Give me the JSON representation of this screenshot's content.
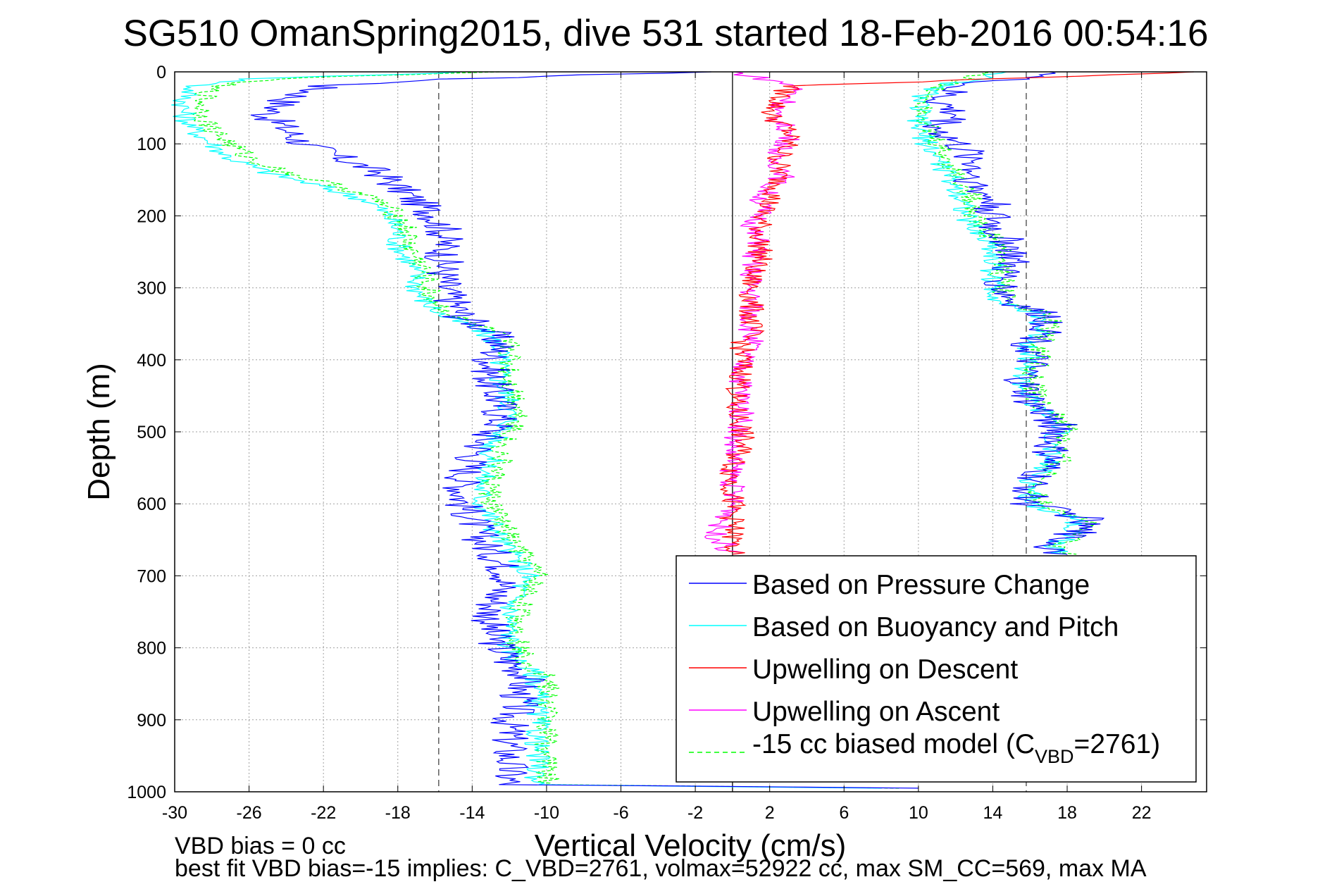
{
  "chart_data": {
    "type": "line",
    "title": "SG510 OmanSpring2015, dive 531 started 18-Feb-2016 00:54:16",
    "xlabel": "Vertical Velocity (cm/s)",
    "ylabel": "Depth (m)",
    "xlim": [
      -30,
      25.5
    ],
    "ylim": [
      0,
      1000
    ],
    "y_reversed": true,
    "grid": true,
    "x_ticks": [
      -30,
      -26,
      -22,
      -18,
      -14,
      -10,
      -6,
      -2,
      2,
      6,
      10,
      14,
      18,
      22
    ],
    "y_ticks": [
      0,
      100,
      200,
      300,
      400,
      500,
      600,
      700,
      800,
      900,
      1000
    ],
    "reference_lines": [
      {
        "x": -15.8,
        "style": "dashed"
      },
      {
        "x": 0,
        "style": "solid"
      },
      {
        "x": 15.8,
        "style": "dashed"
      }
    ],
    "legend": {
      "position": "bottom-right",
      "entries": [
        "Based on Pressure Change",
        "Based on Buoyancy and Pitch",
        "Upwelling on Descent",
        "Upwelling on Ascent",
        "-15 cc biased model (C",
        "VBD",
        "=2761)"
      ]
    },
    "notes": [
      "VBD bias = 0 cc",
      "best fit VBD bias=-15 implies: C_VBD=2761, volmax=52922 cc, max SM_CC=569, max MA"
    ],
    "series": [
      {
        "name": "Based on Pressure Change",
        "color": "#0000ff",
        "depth": [
          0,
          10,
          20,
          40,
          60,
          80,
          100,
          120,
          140,
          160,
          180,
          200,
          220,
          240,
          260,
          280,
          300,
          320,
          340,
          360,
          380,
          400,
          430,
          460,
          490,
          500,
          520,
          540,
          570,
          600,
          620,
          650,
          680,
          700,
          720,
          750,
          780,
          800,
          820,
          840,
          860,
          880,
          900,
          920,
          940,
          960,
          980,
          990,
          995
        ],
        "x": [
          -2,
          -15,
          -22,
          -24,
          -25,
          -24,
          -23,
          -21,
          -19,
          -18,
          -17,
          -16,
          -15.5,
          -15.5,
          -15.5,
          -15.5,
          -15.5,
          -15,
          -14.5,
          -13,
          -12.5,
          -13,
          -13,
          -12.5,
          -12.5,
          -13,
          -13.5,
          -14,
          -14.5,
          -14.5,
          -14,
          -13.5,
          -12.5,
          -12,
          -12.5,
          -13,
          -13,
          -12.5,
          -12,
          -11,
          -11.5,
          -11.5,
          -12,
          -12,
          -12,
          -12,
          -12,
          -12,
          10
        ]
      },
      {
        "name": "Based on Buoyancy and Pitch",
        "color": "#00ffff",
        "depth": [
          0,
          10,
          20,
          40,
          60,
          80,
          100,
          120,
          140,
          160,
          180,
          200,
          220,
          240,
          260,
          280,
          300,
          320,
          340,
          360,
          380,
          400,
          430,
          460,
          490,
          500,
          520,
          540,
          570,
          600,
          620,
          650,
          680,
          700,
          720,
          750,
          780,
          800,
          820,
          840,
          860,
          880,
          900,
          920,
          940,
          960,
          980,
          990,
          995
        ],
        "x": [
          -14,
          -26,
          -29,
          -29.5,
          -29.5,
          -29,
          -28,
          -27,
          -25,
          -22,
          -19.5,
          -18.5,
          -18,
          -18,
          -17.5,
          -17,
          -17,
          -16.5,
          -15.5,
          -13.5,
          -12.5,
          -12.5,
          -12.5,
          -12,
          -12,
          -12.5,
          -13,
          -13,
          -13.5,
          -13.5,
          -13,
          -12.5,
          -11.5,
          -11,
          -11.5,
          -12,
          -12,
          -12,
          -11.5,
          -10.5,
          -10.5,
          -10.5,
          -10.5,
          -10.5,
          -10.5,
          -10.5,
          -10.5,
          -10.5,
          8
        ]
      },
      {
        "name": "Upwelling on Descent",
        "color": "#ff0000",
        "depth": [
          0,
          20,
          40,
          60,
          80,
          100,
          120,
          140,
          160,
          180,
          200,
          220,
          240,
          260,
          280,
          300,
          320,
          340,
          360,
          380,
          400,
          430,
          460,
          490,
          520,
          550,
          580,
          610,
          640,
          670
        ],
        "x": [
          25,
          3,
          2.5,
          2,
          3,
          3,
          2.5,
          2.5,
          2.5,
          2,
          1.5,
          1.5,
          1.5,
          1.5,
          1,
          1,
          1,
          1,
          1,
          0.5,
          0.5,
          0.5,
          0,
          0.5,
          0.5,
          0,
          0,
          0,
          0,
          0
        ]
      },
      {
        "name": "Upwelling on Ascent",
        "color": "#ff00ff",
        "depth": [
          0,
          20,
          40,
          60,
          80,
          100,
          120,
          140,
          160,
          180,
          200,
          220,
          240,
          260,
          280,
          300,
          320,
          340,
          360,
          380,
          400,
          430,
          460,
          490,
          520,
          550,
          580,
          610,
          640,
          670
        ],
        "x": [
          0,
          3.5,
          3,
          2,
          3,
          3,
          2,
          3,
          2,
          1.5,
          1.5,
          1,
          1.5,
          1,
          1,
          1,
          1,
          1,
          1,
          1,
          0.5,
          0.5,
          0.5,
          0.5,
          0,
          0,
          0,
          0,
          -1,
          0
        ]
      },
      {
        "name": "-15 cc biased model (CVBD=2761)",
        "color": "#00ff00",
        "depth": [
          0,
          10,
          20,
          40,
          60,
          80,
          100,
          120,
          140,
          160,
          180,
          200,
          220,
          240,
          260,
          280,
          300,
          320,
          340,
          360,
          380,
          400,
          430,
          460,
          490,
          500,
          520,
          540,
          570,
          600,
          620,
          650,
          680,
          700,
          720,
          750,
          780,
          800,
          820,
          840,
          860,
          880,
          900,
          920,
          940,
          960,
          980,
          990,
          995
        ],
        "x": [
          -13,
          -25,
          -28,
          -28.5,
          -28.5,
          -28,
          -27,
          -26,
          -24,
          -21,
          -19,
          -18,
          -17.5,
          -17.5,
          -17,
          -16.5,
          -16.5,
          -16,
          -15,
          -13,
          -12,
          -12,
          -12,
          -11.5,
          -11.5,
          -12,
          -12.5,
          -12.5,
          -13,
          -13,
          -12.5,
          -12,
          -11,
          -10.5,
          -11,
          -11.5,
          -11.5,
          -11.5,
          -11,
          -10,
          -10,
          -10,
          -10,
          -10,
          -10,
          -10,
          -10,
          -10,
          9
        ]
      },
      {
        "name": "Ascent: Based on Pressure Change",
        "color": "#0000ff",
        "depth": [
          0,
          20,
          40,
          60,
          80,
          100,
          120,
          140,
          160,
          180,
          200,
          220,
          240,
          260,
          280,
          300,
          320,
          340,
          360,
          380,
          400,
          430,
          460,
          490,
          500,
          520,
          540,
          570,
          600,
          620,
          640,
          660,
          670
        ],
        "x": [
          18,
          12,
          11,
          12,
          11,
          12,
          13,
          13,
          13,
          14,
          14,
          14,
          15,
          15,
          14.5,
          14.5,
          15,
          17,
          17,
          16,
          16,
          15.5,
          16,
          17.5,
          17.5,
          17,
          17,
          16,
          16,
          19,
          18.5,
          17,
          18
        ]
      },
      {
        "name": "Ascent: Based on Buoyancy and Pitch",
        "color": "#00ffff",
        "depth": [
          0,
          20,
          40,
          60,
          80,
          100,
          120,
          140,
          160,
          180,
          200,
          220,
          240,
          260,
          280,
          300,
          320,
          340,
          360,
          380,
          400,
          430,
          460,
          490,
          500,
          520,
          540,
          570,
          600,
          620,
          640,
          660,
          670
        ],
        "x": [
          15,
          11,
          10,
          10,
          10,
          10.5,
          11,
          11.5,
          12,
          12.5,
          12.5,
          13,
          14,
          14,
          14,
          14,
          14.5,
          16.5,
          16.5,
          16,
          16,
          15.5,
          16,
          17.5,
          17.5,
          17,
          17,
          16,
          16,
          18.5,
          18.5,
          17,
          18
        ]
      },
      {
        "name": "Ascent: -15 cc biased model",
        "color": "#00ff00",
        "depth": [
          0,
          20,
          40,
          60,
          80,
          100,
          120,
          140,
          160,
          180,
          200,
          220,
          240,
          260,
          280,
          300,
          320,
          340,
          360,
          380,
          400,
          430,
          460,
          490,
          500,
          520,
          540,
          570,
          600,
          620,
          640,
          660,
          670
        ],
        "x": [
          14,
          11,
          10.5,
          10.5,
          10.5,
          11,
          11.5,
          12,
          12.5,
          13,
          13,
          13.5,
          14.5,
          14.5,
          14.5,
          14.5,
          15,
          17,
          17,
          16.5,
          16.5,
          16,
          16.5,
          18,
          18,
          17.5,
          17.5,
          16.5,
          16.5,
          19,
          19,
          17.5,
          18.5
        ]
      }
    ]
  }
}
